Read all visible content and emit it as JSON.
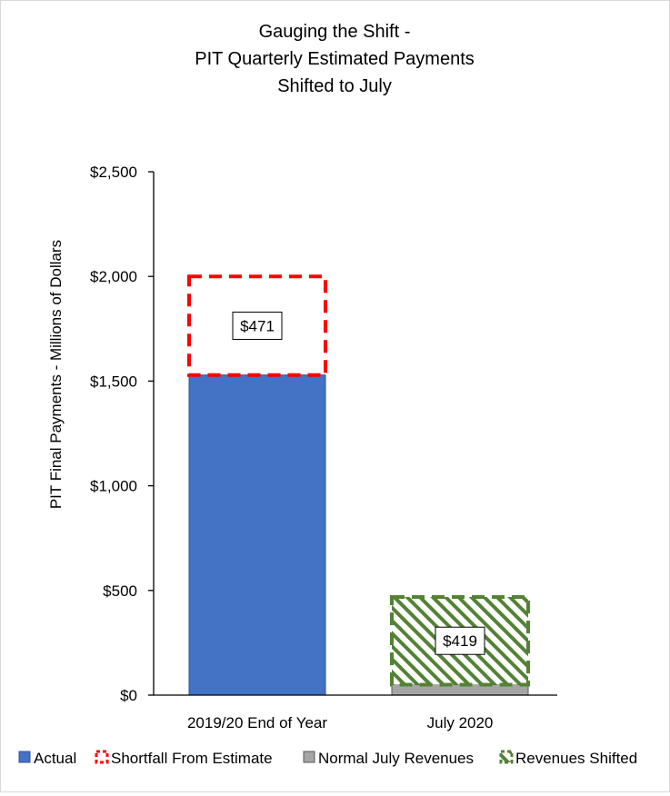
{
  "chart_data": {
    "type": "bar",
    "title_lines": [
      "Gauging the Shift -",
      "PIT Quarterly Estimated Payments",
      "Shifted to July"
    ],
    "ylabel": "PIT Final Payments - Millions of Dollars",
    "xlabel": "",
    "categories": [
      "2019/20 End of Year",
      "July 2020"
    ],
    "ylim": [
      0,
      2500
    ],
    "yticks": [
      0,
      500,
      1000,
      1500,
      2000,
      2500
    ],
    "ytick_labels": [
      "$0",
      "$500",
      "$1,000",
      "$1,500",
      "$2,000",
      "$2,500"
    ],
    "stacked": true,
    "series": [
      {
        "name": "Actual",
        "values": [
          1529,
          0
        ],
        "color": "#4472C4",
        "style": "solid"
      },
      {
        "name": "Shortfall From Estimate",
        "values": [
          471,
          0
        ],
        "color": "#FF0000",
        "style": "dashed-outline"
      },
      {
        "name": "Normal July Revenues",
        "values": [
          0,
          50
        ],
        "color": "#A5A5A5",
        "style": "solid"
      },
      {
        "name": "Revenues Shifted",
        "values": [
          0,
          419
        ],
        "color": "#548235",
        "style": "hatched-dashed"
      }
    ],
    "annotations": [
      {
        "series": "Shortfall From Estimate",
        "category": "2019/20 End of Year",
        "text": "$471"
      },
      {
        "series": "Revenues Shifted",
        "category": "July 2020",
        "text": "$419"
      }
    ],
    "legend": {
      "position": "bottom",
      "items": [
        "Actual",
        "Shortfall From Estimate",
        "Normal July Revenues",
        "Revenues Shifted"
      ]
    },
    "grid": false
  }
}
